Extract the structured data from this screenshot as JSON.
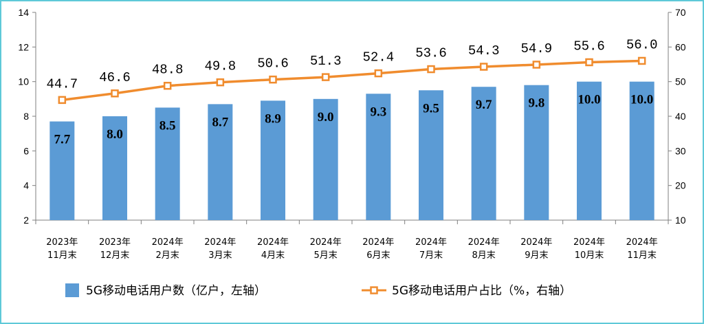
{
  "chart_data": {
    "type": "bar",
    "categories": [
      [
        "2023年",
        "11月末"
      ],
      [
        "2023年",
        "12月末"
      ],
      [
        "2024年",
        "2月末"
      ],
      [
        "2024年",
        "3月末"
      ],
      [
        "2024年",
        "4月末"
      ],
      [
        "2024年",
        "5月末"
      ],
      [
        "2024年",
        "6月末"
      ],
      [
        "2024年",
        "7月末"
      ],
      [
        "2024年",
        "8月末"
      ],
      [
        "2024年",
        "9月末"
      ],
      [
        "2024年",
        "10月末"
      ],
      [
        "2024年",
        "11月末"
      ]
    ],
    "series": [
      {
        "name": "5G移动电话用户数（亿户，左轴）",
        "type": "bar",
        "axis": "left",
        "color": "#5b9bd5",
        "values": [
          7.7,
          8.0,
          8.5,
          8.7,
          8.9,
          9.0,
          9.3,
          9.5,
          9.7,
          9.8,
          10.0,
          10.0
        ],
        "labels": [
          "7.7",
          "8.0",
          "8.5",
          "8.7",
          "8.9",
          "9.0",
          "9.3",
          "9.5",
          "9.7",
          "9.8",
          "10.0",
          "10.0"
        ]
      },
      {
        "name": "5G移动电话用户占比（%，右轴）",
        "type": "line",
        "axis": "right",
        "color": "#f08c2e",
        "marker": "square",
        "values": [
          44.7,
          46.6,
          48.8,
          49.8,
          50.6,
          51.3,
          52.4,
          53.6,
          54.3,
          54.9,
          55.6,
          56.0
        ],
        "labels": [
          "44.7",
          "46.6",
          "48.8",
          "49.8",
          "50.6",
          "51.3",
          "52.4",
          "53.6",
          "54.3",
          "54.9",
          "55.6",
          "56.0"
        ]
      }
    ],
    "y_left": {
      "range": [
        2,
        14
      ],
      "ticks": [
        "2",
        "4",
        "6",
        "8",
        "10",
        "12",
        "14"
      ]
    },
    "y_right": {
      "range": [
        10,
        70
      ],
      "ticks": [
        "10",
        "20",
        "30",
        "40",
        "50",
        "60",
        "70"
      ]
    },
    "grid": false,
    "legend_position": "bottom",
    "border_color": "#5ec9d8"
  }
}
